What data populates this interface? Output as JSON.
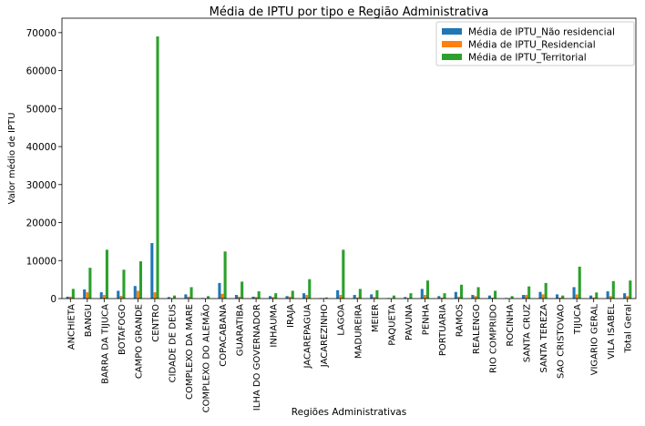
{
  "chart_data": {
    "type": "bar",
    "title": "Média de IPTU por tipo e Região Administrativa",
    "xlabel": "Regiões Administrativas",
    "ylabel": "Valor médio de IPTU",
    "ylim": [
      0,
      73800
    ],
    "yticks": [
      0,
      10000,
      20000,
      30000,
      40000,
      50000,
      60000,
      70000
    ],
    "legend_position": "top-right",
    "grid": false,
    "categories": [
      "ANCHIETA",
      "BANGU",
      "BARRA DA TIJUCA",
      "BOTAFOGO",
      "CAMPO GRANDE",
      "CENTRO",
      "CIDADE DE DEUS",
      "COMPLEXO DA MARE",
      "COMPLEXO DO ALEMÃO",
      "COPACABANA",
      "GUARATIBA",
      "ILHA DO GOVERNADOR",
      "INHAUMA",
      "IRAJA",
      "JACAREPAGUA",
      "JACAREZINHO",
      "LAGOA",
      "MADUREIRA",
      "MEIER",
      "PAQUETA",
      "PAVUNA",
      "PENHA",
      "PORTUARIA",
      "RAMOS",
      "REALENGO",
      "RIO COMPRIDO",
      "ROCINHA",
      "SANTA CRUZ",
      "SANTA TEREZA",
      "SAO CRISTOVAO",
      "TIJUCA",
      "VIGARIO GERAL",
      "VILA ISABEL",
      "Total Geral"
    ],
    "series": [
      {
        "name": "Média de IPTU_Não residencial",
        "color": "#1f77b4",
        "values": [
          500,
          2400,
          1650,
          2050,
          3300,
          14600,
          400,
          1100,
          150,
          4100,
          950,
          500,
          650,
          650,
          1400,
          150,
          2200,
          950,
          1100,
          150,
          400,
          2540,
          650,
          1750,
          950,
          800,
          150,
          950,
          1750,
          1100,
          3000,
          800,
          1900,
          1400
        ]
      },
      {
        "name": "Média de IPTU_Residencial",
        "color": "#ff7f0e",
        "values": [
          500,
          1650,
          950,
          700,
          2050,
          1650,
          150,
          500,
          80,
          1250,
          500,
          400,
          400,
          500,
          950,
          80,
          950,
          300,
          400,
          80,
          150,
          950,
          250,
          500,
          650,
          250,
          80,
          950,
          1100,
          250,
          1100,
          300,
          650,
          650
        ]
      },
      {
        "name": "Média de IPTU_Territorial",
        "color": "#2ca02c",
        "values": [
          2540,
          8100,
          12850,
          7600,
          9800,
          69000,
          800,
          3000,
          650,
          12400,
          4450,
          1900,
          1400,
          2050,
          5100,
          300,
          12850,
          2540,
          2200,
          800,
          1400,
          4750,
          1400,
          3650,
          3000,
          2050,
          650,
          3200,
          4100,
          800,
          8400,
          1600,
          4600,
          4750
        ]
      }
    ]
  }
}
